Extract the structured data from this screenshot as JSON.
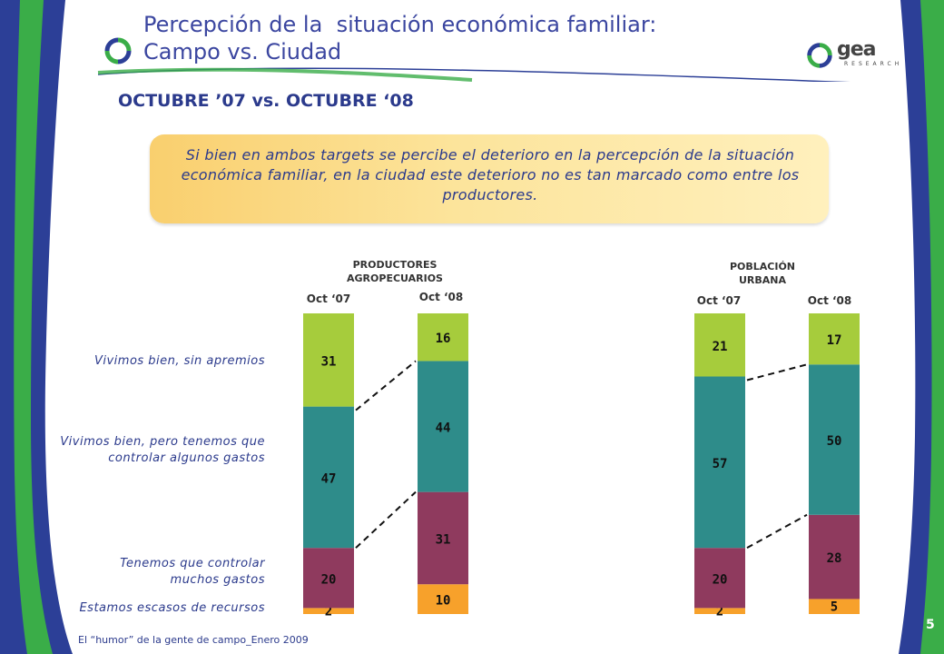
{
  "title_line1": "Percepción de la  situación económica familiar:",
  "title_line2": "Campo vs. Ciudad",
  "subtitle": "OCTUBRE ’07 vs. OCTUBRE ‘08",
  "note": "Si bien en ambos targets se percibe el deterioro en la percepción de la situación económica familiar, en la ciudad este deterioro no es tan marcado como entre los productores.",
  "logo_text": "gea",
  "logo_subtext": "RESEARCH",
  "footer": "El “humor” de la gente de campo_Enero 2009",
  "page_number": "5",
  "row_labels": {
    "top": "Vivimos bien, sin apremios",
    "mid": "Vivimos bien, pero tenemos que controlar algunos gastos",
    "low": "Tenemos que controlar muchos gastos",
    "bottom": "Estamos escasos de recursos"
  },
  "colors": {
    "title": "#3b46a0",
    "green": "#a6cc3c",
    "teal": "#2e8c8a",
    "maroon": "#8f3a5e",
    "orange": "#f7a12b",
    "side_blue": "#2c3f97",
    "side_green": "#3aad48"
  },
  "chart_data": {
    "type": "bar",
    "stacked": true,
    "groups": [
      {
        "title": "PRODUCTORES AGROPECUARIOS",
        "categories": [
          "Oct ‘07",
          "Oct ‘08"
        ]
      },
      {
        "title": "POBLACIÓN URBANA",
        "categories": [
          "Oct ‘07",
          "Oct ‘08"
        ]
      }
    ],
    "series": [
      {
        "name": "Estamos escasos de recursos",
        "color": "#f7a12b",
        "values": [
          2,
          10,
          2,
          5
        ]
      },
      {
        "name": "Tenemos que controlar muchos gastos",
        "color": "#8f3a5e",
        "values": [
          20,
          31,
          20,
          28
        ]
      },
      {
        "name": "Vivimos bien, pero tenemos que controlar algunos gastos",
        "color": "#2e8c8a",
        "values": [
          47,
          44,
          57,
          50
        ]
      },
      {
        "name": "Vivimos bien, sin apremios",
        "color": "#a6cc3c",
        "values": [
          31,
          16,
          21,
          17
        ]
      }
    ],
    "ylim": [
      0,
      100
    ]
  }
}
